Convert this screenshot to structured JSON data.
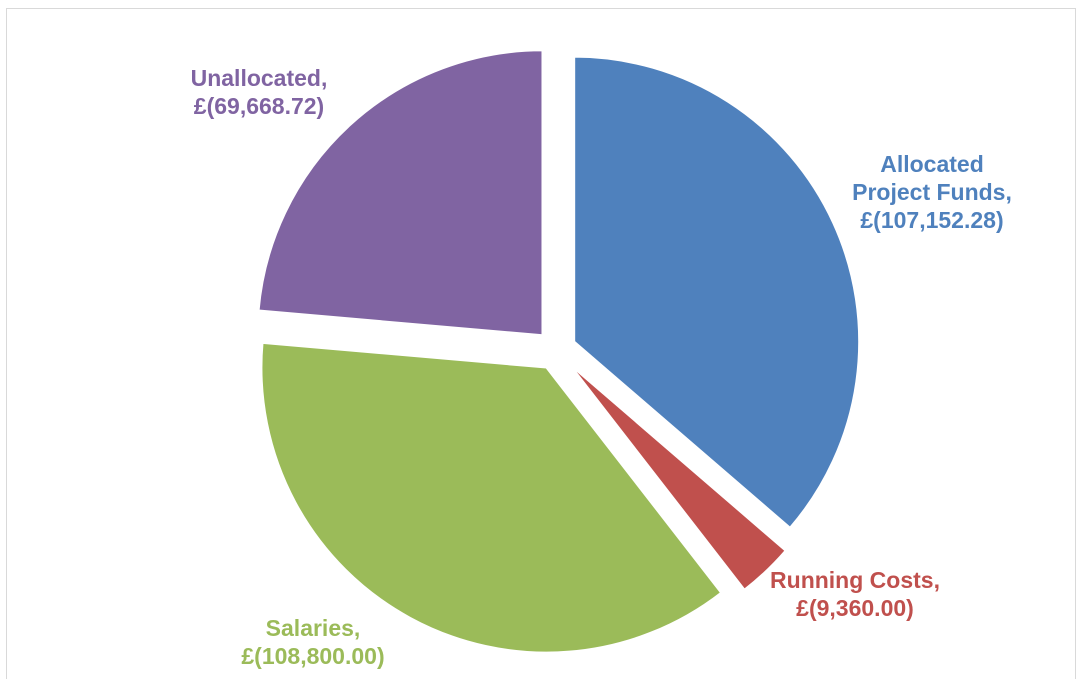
{
  "chart_data": {
    "type": "pie",
    "title": "",
    "slices": [
      {
        "label": "Allocated Project Funds",
        "display": "£(107,152.28)",
        "value": 107152.28,
        "color": "#4f81bd"
      },
      {
        "label": "Running Costs",
        "display": "£(9,360.00)",
        "value": 9360.0,
        "color": "#c0504d"
      },
      {
        "label": "Salaries",
        "display": "£(108,800.00)",
        "value": 108800.0,
        "color": "#9bbb59"
      },
      {
        "label": "Unallocated",
        "display": "£(69,668.72)",
        "value": 69668.72,
        "color": "#8064a2"
      }
    ],
    "exploded": true,
    "legend": false,
    "data_labels": [
      "Allocated",
      "Project Funds,",
      "Running Costs,",
      "Salaries,",
      "Unallocated,"
    ]
  }
}
